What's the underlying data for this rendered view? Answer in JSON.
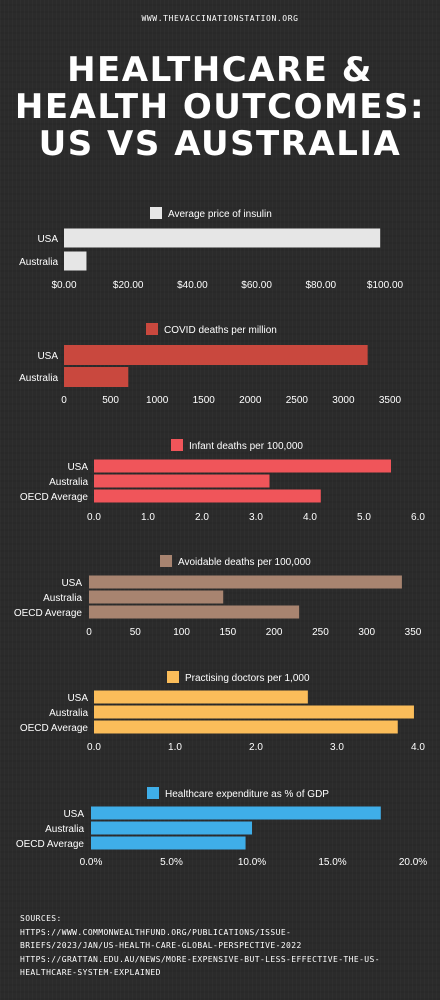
{
  "site": "WWW.THEVACCINATIONSTATION.ORG",
  "title_lines": [
    "HEALTHCARE &",
    "HEALTH OUTCOMES:",
    "US VS AUSTRALIA"
  ],
  "chart_data": [
    {
      "type": "bar",
      "orientation": "horizontal",
      "legend": "Average price of insulin",
      "legend_color": "#e6e6e6",
      "categories": [
        "USA",
        "Australia"
      ],
      "values": [
        98.5,
        7
      ],
      "ticks": [
        "$0.00",
        "$20.00",
        "$40.00",
        "$60.00",
        "$80.00",
        "$100.00"
      ],
      "xlim": [
        0,
        100
      ]
    },
    {
      "type": "bar",
      "orientation": "horizontal",
      "legend": "COVID deaths per million",
      "legend_color": "#c9483e",
      "categories": [
        "USA",
        "Australia"
      ],
      "values": [
        3260,
        690
      ],
      "ticks": [
        "0",
        "500",
        "1000",
        "1500",
        "2000",
        "2500",
        "3000",
        "3500"
      ],
      "xlim": [
        0,
        3500
      ]
    },
    {
      "type": "bar",
      "orientation": "horizontal",
      "legend": "Infant deaths per 100,000",
      "legend_color": "#f0555a",
      "categories": [
        "USA",
        "Australia",
        "OECD Average"
      ],
      "values": [
        5.5,
        3.25,
        4.2
      ],
      "ticks": [
        "0.0",
        "1.0",
        "2.0",
        "3.0",
        "4.0",
        "5.0",
        "6.0"
      ],
      "xlim": [
        0,
        6
      ]
    },
    {
      "type": "bar",
      "orientation": "horizontal",
      "legend": "Avoidable deaths per 100,000",
      "legend_color": "#a88470",
      "categories": [
        "USA",
        "Australia",
        "OECD Average"
      ],
      "values": [
        338,
        145,
        227
      ],
      "ticks": [
        "0",
        "50",
        "100",
        "150",
        "200",
        "250",
        "300",
        "350"
      ],
      "xlim": [
        0,
        350
      ]
    },
    {
      "type": "bar",
      "orientation": "horizontal",
      "legend": "Practising doctors per 1,000",
      "legend_color": "#fbbd5a",
      "categories": [
        "USA",
        "Australia",
        "OECD Average"
      ],
      "values": [
        2.64,
        3.95,
        3.75
      ],
      "ticks": [
        "0.0",
        "1.0",
        "2.0",
        "3.0",
        "4.0"
      ],
      "xlim": [
        0,
        4
      ]
    },
    {
      "type": "bar",
      "orientation": "horizontal",
      "legend": "Healthcare expenditure as % of GDP",
      "legend_color": "#3faee8",
      "categories": [
        "USA",
        "Australia",
        "OECD Average"
      ],
      "values": [
        18,
        10,
        9.6
      ],
      "ticks": [
        "0.0%",
        "5.0%",
        "10.0%",
        "15.0%",
        "20.0%"
      ],
      "xlim": [
        0,
        20
      ]
    }
  ],
  "sources": {
    "label": "SOURCES:",
    "lines": [
      "HTTPS://WWW.COMMONWEALTHFUND.ORG/PUBLICATIONS/ISSUE-",
      "BRIEFS/2023/JAN/US-HEALTH-CARE-GLOBAL-PERSPECTIVE-2022",
      "HTTPS://GRATTAN.EDU.AU/NEWS/MORE-EXPENSIVE-BUT-LESS-EFFECTIVE-THE-US-",
      "HEALTHCARE-SYSTEM-EXPLAINED"
    ]
  }
}
